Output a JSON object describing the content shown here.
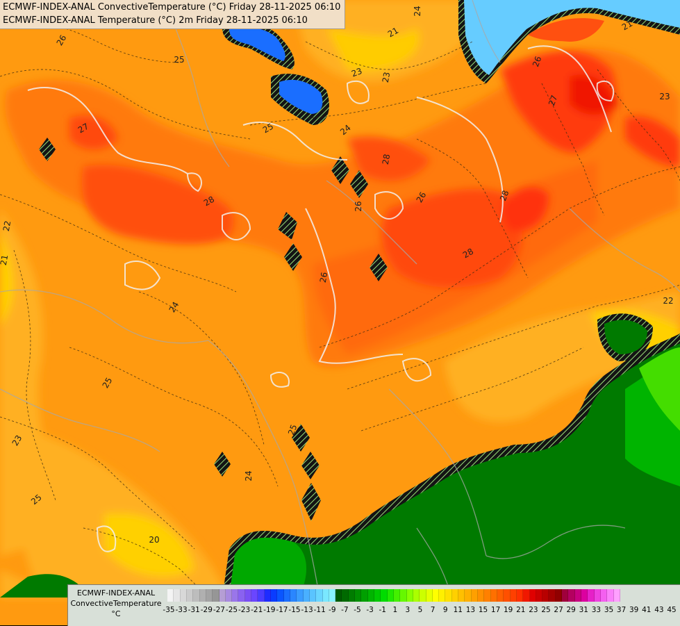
{
  "title_lines": [
    "ECMWF-INDEX-ANAL ConvectiveTemperature (°C) Friday 28-11-2025 06:10",
    "ECMWF-INDEX-ANAL Temperature (°C) 2m Friday 28-11-2025 06:10"
  ],
  "legend": {
    "label_lines": [
      "ECMWF-INDEX-ANAL",
      "ConvectiveTemperature",
      "°C"
    ],
    "ticks": [
      "-35",
      "-33",
      "-31",
      "-29",
      "-27",
      "-25",
      "-23",
      "-21",
      "-19",
      "-17",
      "-15",
      "-13",
      "-11",
      "-9",
      "-7",
      "-5",
      "-3",
      "-1",
      "1",
      "3",
      "5",
      "7",
      "9",
      "11",
      "13",
      "15",
      "17",
      "19",
      "21",
      "23",
      "25",
      "27",
      "29",
      "31",
      "33",
      "35",
      "37",
      "39",
      "41",
      "43",
      "45"
    ],
    "colors": [
      "#f4f4f4",
      "#e6e6e6",
      "#d8d8d8",
      "#cbcbcb",
      "#bdbdbd",
      "#b0b0b0",
      "#a3a3a3",
      "#969696",
      "#b59ed4",
      "#a88ae0",
      "#9a76ea",
      "#8a62f0",
      "#7a4ff5",
      "#6a46ff",
      "#4a3cff",
      "#1e2cff",
      "#0a3cff",
      "#0a55ff",
      "#1a6eff",
      "#2a86ff",
      "#3a9cff",
      "#4ab0ff",
      "#5ac4ff",
      "#6ad6ff",
      "#7ae8ff",
      "#88f4ff",
      "#005a00",
      "#006a00",
      "#007c00",
      "#008e00",
      "#00a000",
      "#00b400",
      "#00c800",
      "#00dc00",
      "#20e800",
      "#44f000",
      "#66f800",
      "#88ff00",
      "#aaff00",
      "#ccff00",
      "#e6ff00",
      "#ffff00",
      "#fff000",
      "#ffe000",
      "#ffd000",
      "#ffc000",
      "#ffb000",
      "#ffa000",
      "#ff9000",
      "#ff8000",
      "#ff7000",
      "#ff6000",
      "#ff5000",
      "#ff4000",
      "#ff3000",
      "#f01800",
      "#e00000",
      "#cc0000",
      "#b80000",
      "#a40000",
      "#900000",
      "#a0003c",
      "#b40060",
      "#c80080",
      "#dc00a0",
      "#e620c8",
      "#ee40e0",
      "#f460f0",
      "#fa80fa",
      "#ffa0ff"
    ]
  },
  "contour_labels": [
    {
      "text": "26"
    },
    {
      "text": "25"
    },
    {
      "text": "27"
    },
    {
      "text": "28"
    },
    {
      "text": "22"
    },
    {
      "text": "21"
    },
    {
      "text": "24"
    },
    {
      "text": "25"
    },
    {
      "text": "23"
    },
    {
      "text": "25"
    },
    {
      "text": "24"
    },
    {
      "text": "20"
    },
    {
      "text": "25"
    },
    {
      "text": "24"
    },
    {
      "text": "23"
    },
    {
      "text": "23"
    },
    {
      "text": "21"
    },
    {
      "text": "28"
    },
    {
      "text": "26"
    },
    {
      "text": "26"
    },
    {
      "text": "28"
    },
    {
      "text": "28"
    },
    {
      "text": "26"
    },
    {
      "text": "27"
    },
    {
      "text": "26"
    },
    {
      "text": "23"
    },
    {
      "text": "22"
    },
    {
      "text": "21"
    },
    {
      "text": "25"
    },
    {
      "text": "24"
    }
  ]
}
